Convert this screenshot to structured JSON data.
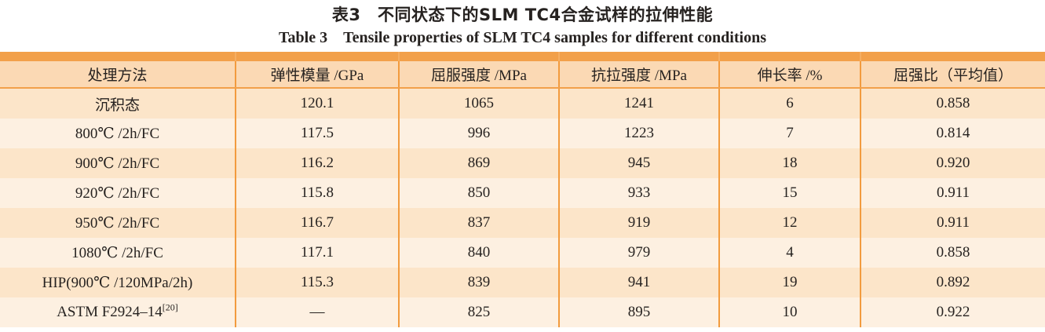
{
  "page": {
    "title_zh": "表3　不同状态下的SLM TC4合金试样的拉伸性能",
    "title_en": "Table 3　Tensile properties of SLM TC4 samples for different conditions"
  },
  "colors": {
    "accent_band": "#F2A04A",
    "column_separator": "#F29B3E",
    "header_bg": "#FBD9B4",
    "row_odd_bg": "#FCE5C9",
    "row_even_bg": "#FDF0E1",
    "text": "#262220"
  },
  "chart_data": {
    "type": "table",
    "title": "表3 不同状态下的SLM TC4合金试样的拉伸性能 / Table 3 Tensile properties of SLM TC4 samples for different conditions",
    "columns": [
      "处理方法",
      "弹性模量 /GPa",
      "屈服强度 /MPa",
      "抗拉强度 /MPa",
      "伸长率 /%",
      "屈强比（平均值）"
    ],
    "rows": [
      [
        "沉积态",
        120.1,
        1065,
        1241,
        6,
        0.858
      ],
      [
        "800℃ /2h/FC",
        117.5,
        996,
        1223,
        7,
        0.814
      ],
      [
        "900℃ /2h/FC",
        116.2,
        869,
        945,
        18,
        0.92
      ],
      [
        "920℃ /2h/FC",
        115.8,
        850,
        933,
        15,
        0.911
      ],
      [
        "950℃ /2h/FC",
        116.7,
        837,
        919,
        12,
        0.911
      ],
      [
        "1080℃ /2h/FC",
        117.1,
        840,
        979,
        4,
        0.858
      ],
      [
        "HIP(900℃ /120MPa/2h)",
        115.3,
        839,
        941,
        19,
        0.892
      ],
      [
        "ASTM F2924–14[20]",
        null,
        825,
        895,
        10,
        0.922
      ]
    ]
  },
  "table": {
    "headers": [
      "处理方法",
      "弹性模量 /GPa",
      "屈服强度 /MPa",
      "抗拉强度 /MPa",
      "伸长率 /%",
      "屈强比（平均值）"
    ],
    "rows": [
      {
        "cells": [
          "沉积态",
          "120.1",
          "1065",
          "1241",
          "6",
          "0.858"
        ]
      },
      {
        "cells": [
          "800℃ /2h/FC",
          "117.5",
          "996",
          "1223",
          "7",
          "0.814"
        ]
      },
      {
        "cells": [
          "900℃ /2h/FC",
          "116.2",
          "869",
          "945",
          "18",
          "0.920"
        ]
      },
      {
        "cells": [
          "920℃ /2h/FC",
          "115.8",
          "850",
          "933",
          "15",
          "0.911"
        ]
      },
      {
        "cells": [
          "950℃ /2h/FC",
          "116.7",
          "837",
          "919",
          "12",
          "0.911"
        ]
      },
      {
        "cells": [
          "1080℃ /2h/FC",
          "117.1",
          "840",
          "979",
          "4",
          "0.858"
        ]
      },
      {
        "cells": [
          "HIP(900℃ /120MPa/2h)",
          "115.3",
          "839",
          "941",
          "19",
          "0.892"
        ]
      },
      {
        "cells": [
          "ASTM F2924–14",
          "—",
          "825",
          "895",
          "10",
          "0.922"
        ],
        "ref_sup": "[20]"
      }
    ]
  }
}
